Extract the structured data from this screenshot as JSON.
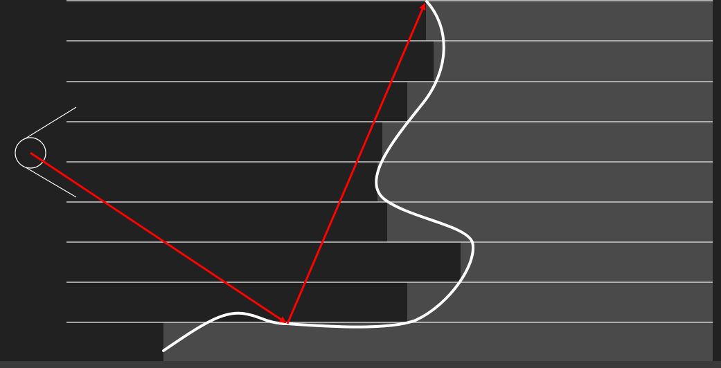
{
  "colors": {
    "background": "#212121",
    "dark_region": "#212121",
    "light_region": "#4a4a4a",
    "grid_lines": "#d0d0d0",
    "boundary_curve": "#ffffff",
    "ray": "#ff0000",
    "bottom_band": "#3a3a3a"
  },
  "diagram": {
    "band_count": 9,
    "icons": {
      "camera": "camera-icon",
      "ray_arrow": "arrow-icon"
    }
  }
}
